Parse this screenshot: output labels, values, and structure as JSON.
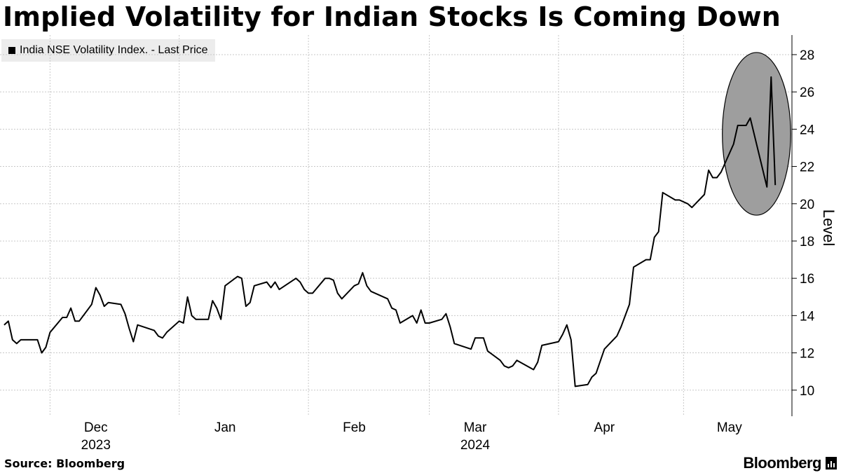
{
  "header": {
    "title": "Implied Volatility for Indian Stocks Is Coming Down"
  },
  "legend": {
    "label": "India NSE Volatility Index. - Last Price"
  },
  "footer": {
    "source": "Source: Bloomberg",
    "brand": "Bloomberg"
  },
  "colors": {
    "line": "#000000",
    "grid": "#c8c8c8",
    "highlight_fill": "#9e9e9e",
    "legend_bg": "#ececec"
  },
  "chart_data": {
    "type": "line",
    "title": "Implied Volatility for Indian Stocks Is Coming Down",
    "ylabel": "Level",
    "xlabel": "",
    "ylim": [
      8.6,
      28.6
    ],
    "y_ticks": [
      10,
      12,
      14,
      16,
      18,
      20,
      22,
      24,
      26,
      28
    ],
    "grid": true,
    "legend_position": "top-left",
    "x_tick_labels": [
      {
        "date": "2023-12-01",
        "label": "Dec",
        "year": "2023"
      },
      {
        "date": "2024-01-01",
        "label": "Jan",
        "year": ""
      },
      {
        "date": "2024-02-01",
        "label": "Feb",
        "year": ""
      },
      {
        "date": "2024-03-01",
        "label": "Mar",
        "year": "2024"
      },
      {
        "date": "2024-04-01",
        "label": "Apr",
        "year": ""
      },
      {
        "date": "2024-05-01",
        "label": "May",
        "year": ""
      }
    ],
    "series": [
      {
        "name": "India NSE Volatility Index. - Last Price",
        "points": [
          [
            "2023-11-20",
            13.5
          ],
          [
            "2023-11-21",
            13.7
          ],
          [
            "2023-11-22",
            12.7
          ],
          [
            "2023-11-23",
            12.5
          ],
          [
            "2023-11-24",
            12.7
          ],
          [
            "2023-11-28",
            12.7
          ],
          [
            "2023-11-29",
            12.0
          ],
          [
            "2023-11-30",
            12.3
          ],
          [
            "2023-12-01",
            13.1
          ],
          [
            "2023-12-04",
            13.9
          ],
          [
            "2023-12-05",
            13.9
          ],
          [
            "2023-12-06",
            14.4
          ],
          [
            "2023-12-07",
            13.7
          ],
          [
            "2023-12-08",
            13.7
          ],
          [
            "2023-12-11",
            14.6
          ],
          [
            "2023-12-12",
            15.5
          ],
          [
            "2023-12-13",
            15.1
          ],
          [
            "2023-12-14",
            14.5
          ],
          [
            "2023-12-15",
            14.7
          ],
          [
            "2023-12-18",
            14.6
          ],
          [
            "2023-12-19",
            14.1
          ],
          [
            "2023-12-20",
            13.3
          ],
          [
            "2023-12-21",
            12.6
          ],
          [
            "2023-12-22",
            13.5
          ],
          [
            "2023-12-26",
            13.2
          ],
          [
            "2023-12-27",
            12.9
          ],
          [
            "2023-12-28",
            12.8
          ],
          [
            "2023-12-29",
            13.1
          ],
          [
            "2024-01-01",
            13.7
          ],
          [
            "2024-01-02",
            13.6
          ],
          [
            "2024-01-03",
            15.0
          ],
          [
            "2024-01-04",
            14.0
          ],
          [
            "2024-01-05",
            13.8
          ],
          [
            "2024-01-08",
            13.8
          ],
          [
            "2024-01-09",
            14.8
          ],
          [
            "2024-01-10",
            14.4
          ],
          [
            "2024-01-11",
            13.8
          ],
          [
            "2024-01-12",
            15.6
          ],
          [
            "2024-01-15",
            16.1
          ],
          [
            "2024-01-16",
            16.0
          ],
          [
            "2024-01-17",
            14.5
          ],
          [
            "2024-01-18",
            14.7
          ],
          [
            "2024-01-19",
            15.6
          ],
          [
            "2024-01-22",
            15.8
          ],
          [
            "2024-01-23",
            15.5
          ],
          [
            "2024-01-24",
            15.8
          ],
          [
            "2024-01-25",
            15.4
          ],
          [
            "2024-01-29",
            16.0
          ],
          [
            "2024-01-30",
            15.8
          ],
          [
            "2024-01-31",
            15.4
          ],
          [
            "2024-02-01",
            15.2
          ],
          [
            "2024-02-02",
            15.2
          ],
          [
            "2024-02-05",
            16.0
          ],
          [
            "2024-02-06",
            16.0
          ],
          [
            "2024-02-07",
            15.9
          ],
          [
            "2024-02-08",
            15.2
          ],
          [
            "2024-02-09",
            14.9
          ],
          [
            "2024-02-12",
            15.6
          ],
          [
            "2024-02-13",
            15.7
          ],
          [
            "2024-02-14",
            16.3
          ],
          [
            "2024-02-15",
            15.6
          ],
          [
            "2024-02-16",
            15.3
          ],
          [
            "2024-02-19",
            15.0
          ],
          [
            "2024-02-20",
            14.9
          ],
          [
            "2024-02-21",
            14.4
          ],
          [
            "2024-02-22",
            14.3
          ],
          [
            "2024-02-23",
            13.6
          ],
          [
            "2024-02-26",
            14.0
          ],
          [
            "2024-02-27",
            13.6
          ],
          [
            "2024-02-28",
            14.3
          ],
          [
            "2024-02-29",
            13.6
          ],
          [
            "2024-03-01",
            13.6
          ],
          [
            "2024-03-04",
            13.8
          ],
          [
            "2024-03-05",
            14.1
          ],
          [
            "2024-03-06",
            13.4
          ],
          [
            "2024-03-07",
            12.5
          ],
          [
            "2024-03-11",
            12.2
          ],
          [
            "2024-03-12",
            12.8
          ],
          [
            "2024-03-13",
            12.8
          ],
          [
            "2024-03-14",
            12.8
          ],
          [
            "2024-03-15",
            12.1
          ],
          [
            "2024-03-18",
            11.6
          ],
          [
            "2024-03-19",
            11.3
          ],
          [
            "2024-03-20",
            11.2
          ],
          [
            "2024-03-21",
            11.3
          ],
          [
            "2024-03-22",
            11.6
          ],
          [
            "2024-03-26",
            11.1
          ],
          [
            "2024-03-27",
            11.5
          ],
          [
            "2024-03-28",
            12.4
          ],
          [
            "2024-04-01",
            12.6
          ],
          [
            "2024-04-02",
            13.0
          ],
          [
            "2024-04-03",
            13.5
          ],
          [
            "2024-04-04",
            12.7
          ],
          [
            "2024-04-05",
            10.2
          ],
          [
            "2024-04-08",
            10.3
          ],
          [
            "2024-04-09",
            10.7
          ],
          [
            "2024-04-10",
            10.9
          ],
          [
            "2024-04-12",
            12.2
          ],
          [
            "2024-04-15",
            12.9
          ],
          [
            "2024-04-16",
            13.4
          ],
          [
            "2024-04-18",
            14.6
          ],
          [
            "2024-04-19",
            16.6
          ],
          [
            "2024-04-22",
            17.0
          ],
          [
            "2024-04-23",
            17.0
          ],
          [
            "2024-04-24",
            18.2
          ],
          [
            "2024-04-25",
            18.5
          ],
          [
            "2024-04-26",
            20.6
          ],
          [
            "2024-04-29",
            20.2
          ],
          [
            "2024-04-30",
            20.2
          ],
          [
            "2024-05-02",
            20.0
          ],
          [
            "2024-05-03",
            19.8
          ],
          [
            "2024-05-06",
            20.5
          ],
          [
            "2024-05-07",
            21.8
          ],
          [
            "2024-05-08",
            21.4
          ],
          [
            "2024-05-09",
            21.4
          ],
          [
            "2024-05-10",
            21.7
          ],
          [
            "2024-05-13",
            23.2
          ],
          [
            "2024-05-14",
            24.2
          ],
          [
            "2024-05-15",
            24.2
          ],
          [
            "2024-05-16",
            24.2
          ],
          [
            "2024-05-17",
            24.6
          ],
          [
            "2024-05-21",
            20.9
          ],
          [
            "2024-05-22",
            26.8
          ],
          [
            "2024-05-23",
            21.0
          ]
        ]
      }
    ],
    "highlight": {
      "shape": "ellipse",
      "x_range": [
        "2024-05-14",
        "2024-05-23"
      ],
      "y_range": [
        19.5,
        28.0
      ]
    }
  }
}
